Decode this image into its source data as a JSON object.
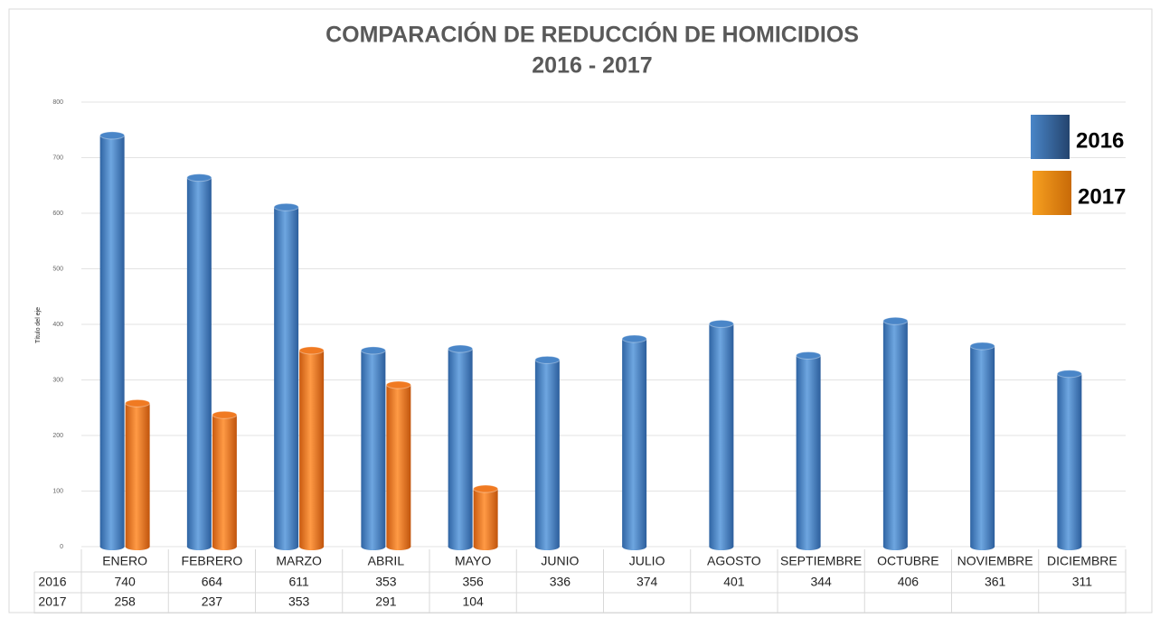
{
  "chart_data": {
    "type": "bar",
    "title": "COMPARACIÓN DE REDUCCIÓN DE HOMICIDIOS",
    "subtitle": "2016 - 2017",
    "y_axis_label": "Título del eje",
    "categories": [
      "ENERO",
      "FEBRERO",
      "MARZO",
      "ABRIL",
      "MAYO",
      "JUNIO",
      "JULIO",
      "AGOSTO",
      "SEPTIEMBRE",
      "OCTUBRE",
      "NOVIEMBRE",
      "DICIEMBRE"
    ],
    "series": [
      {
        "name": "2016",
        "color": "#4a86c8",
        "values": [
          740,
          664,
          611,
          353,
          356,
          336,
          374,
          401,
          344,
          406,
          361,
          311
        ]
      },
      {
        "name": "2017",
        "color": "#f07a22",
        "values": [
          258,
          237,
          353,
          291,
          104,
          null,
          null,
          null,
          null,
          null,
          null,
          null
        ]
      }
    ],
    "ylim": [
      0,
      800
    ],
    "yticks": [
      0,
      100,
      200,
      300,
      400,
      500,
      600,
      700,
      800
    ],
    "grid": true,
    "legend": "top-right",
    "data_table": true
  }
}
